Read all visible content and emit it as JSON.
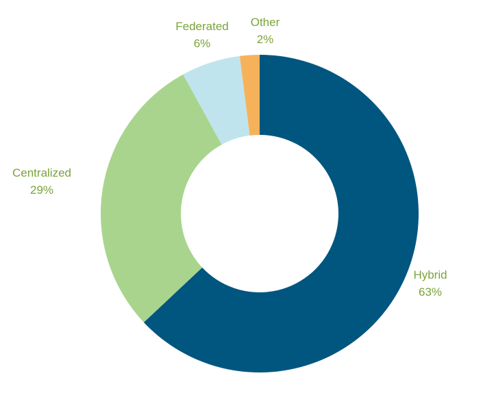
{
  "chart_data": {
    "type": "pie",
    "variant": "donut",
    "title": "",
    "label_color": "#7aa33a",
    "slices": [
      {
        "name": "Hybrid",
        "value": 63,
        "label": "63%",
        "color": "#00567f"
      },
      {
        "name": "Centralized",
        "value": 29,
        "label": "29%",
        "color": "#a9d48e"
      },
      {
        "name": "Federated",
        "value": 6,
        "label": "6%",
        "color": "#bfe4ed"
      },
      {
        "name": "Other",
        "value": 2,
        "label": "2%",
        "color": "#f6b25a"
      }
    ]
  }
}
